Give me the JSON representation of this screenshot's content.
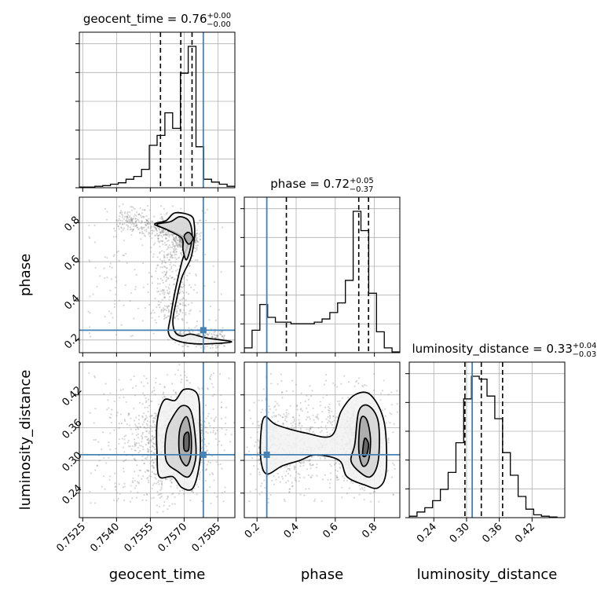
{
  "chart_data": {
    "type": "corner",
    "colors": {
      "truth": "#4682b4",
      "hist": "#000000",
      "grid": "#b0b0b0",
      "scatter": "#8c8c8c"
    },
    "parameters": [
      "geocent_time",
      "phase",
      "luminosity_distance"
    ],
    "truth": {
      "geocent_time": 0.75785,
      "phase": 0.25,
      "luminosity_distance": 0.3103
    },
    "titles": [
      {
        "param": "geocent_time",
        "main": "geocent_time = 0.76",
        "sup": "+0.00",
        "sub": "−0.00"
      },
      {
        "param": "phase",
        "main": "phase = 0.72",
        "sup": "+0.05",
        "sub": "−0.37"
      },
      {
        "param": "luminosity_distance",
        "main": "luminosity_distance = 0.33",
        "sup": "+0.04",
        "sub": "−0.03"
      }
    ],
    "axis_labels": {
      "geocent_time": "geocent_time",
      "phase": "phase",
      "luminosity_distance": "luminosity_distance"
    },
    "ranges": {
      "geocent_time": [
        0.75235,
        0.75925
      ],
      "phase": [
        0.135,
        0.93
      ],
      "luminosity_distance": [
        0.195,
        0.48
      ]
    },
    "ticks": {
      "geocent_time": [
        "0.7525",
        "0.7540",
        "0.7555",
        "0.7570",
        "0.7585"
      ],
      "phase": [
        "0.2",
        "0.4",
        "0.6",
        "0.8"
      ],
      "luminosity_distance": [
        "0.24",
        "0.30",
        "0.36",
        "0.42"
      ]
    },
    "quantiles": {
      "geocent_time": [
        0.75595,
        0.75685,
        0.75735
      ],
      "phase": [
        0.35,
        0.72,
        0.77
      ],
      "luminosity_distance": [
        0.297,
        0.327,
        0.366
      ]
    },
    "histograms": {
      "geocent_time": {
        "edges": [
          0.75235,
          0.752695,
          0.75304,
          0.753385,
          0.75373,
          0.754075,
          0.75442,
          0.754765,
          0.75511,
          0.755455,
          0.7558,
          0.756145,
          0.75649,
          0.756835,
          0.75718,
          0.757525,
          0.75787,
          0.758215,
          0.75856,
          0.758905,
          0.75925
        ],
        "counts": [
          0.005,
          0.005,
          0.01,
          0.015,
          0.025,
          0.035,
          0.06,
          0.08,
          0.13,
          0.3,
          0.37,
          0.53,
          0.42,
          0.81,
          1.0,
          0.29,
          0.06,
          0.04,
          0.025,
          0.01
        ]
      },
      "phase": {
        "edges": [
          0.135,
          0.17475,
          0.2145,
          0.25425,
          0.294,
          0.33375,
          0.3735,
          0.41325,
          0.453,
          0.49275,
          0.5325,
          0.57225,
          0.612,
          0.65175,
          0.6915,
          0.73125,
          0.771,
          0.81075,
          0.8505,
          0.89025,
          0.93
        ],
        "counts": [
          0.03,
          0.14,
          0.3,
          0.22,
          0.19,
          0.19,
          0.18,
          0.18,
          0.18,
          0.19,
          0.21,
          0.25,
          0.31,
          0.45,
          0.88,
          0.76,
          0.37,
          0.13,
          0.03,
          0.005
        ]
      },
      "luminosity_distance": {
        "edges": [
          0.195,
          0.20925,
          0.2235,
          0.23775,
          0.252,
          0.26625,
          0.2805,
          0.29475,
          0.309,
          0.32325,
          0.3375,
          0.35175,
          0.366,
          0.38025,
          0.3945,
          0.40875,
          0.423,
          0.43725,
          0.4515,
          0.46575,
          0.48
        ],
        "counts": [
          0.01,
          0.04,
          0.07,
          0.12,
          0.2,
          0.32,
          0.53,
          0.84,
          1.0,
          0.98,
          0.86,
          0.7,
          0.46,
          0.3,
          0.15,
          0.06,
          0.02,
          0.01,
          0.005,
          0.0
        ]
      }
    }
  }
}
